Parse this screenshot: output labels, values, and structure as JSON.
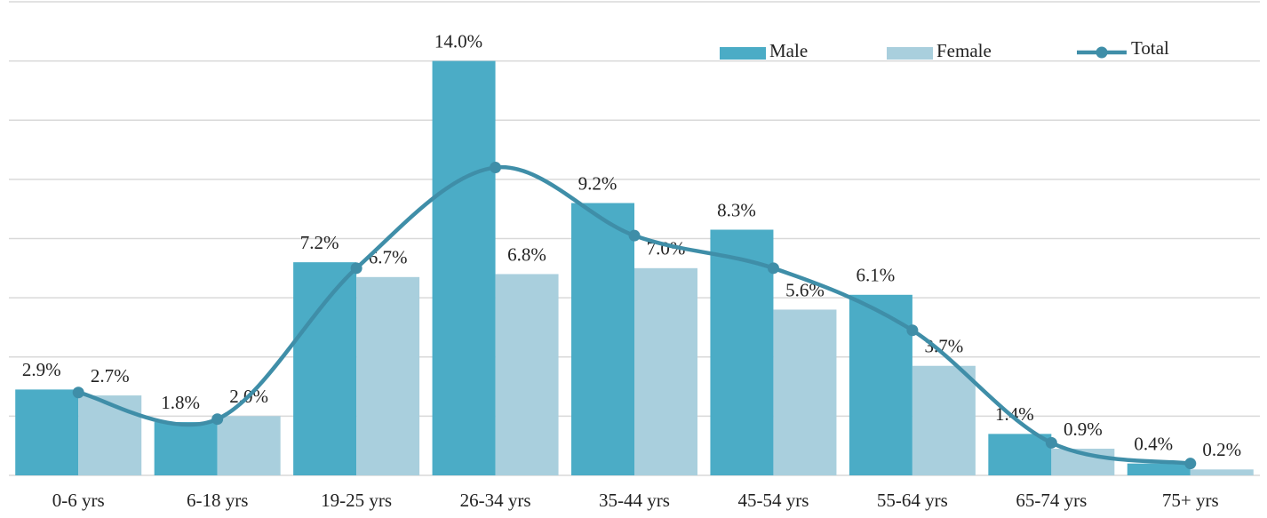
{
  "chart_data": {
    "type": "bar",
    "categories": [
      "0-6 yrs",
      "6-18 yrs",
      "19-25 yrs",
      "26-34 yrs",
      "35-44 yrs",
      "45-54 yrs",
      "55-64 yrs",
      "65-74 yrs",
      "75+ yrs"
    ],
    "series": [
      {
        "name": "Male",
        "type": "bar",
        "color": "#4bacc6",
        "values": [
          2.9,
          1.8,
          7.2,
          14.0,
          9.2,
          8.3,
          6.1,
          1.4,
          0.4
        ],
        "value_labels": [
          "2.9%",
          "1.8%",
          "7.2%",
          "14.0%",
          "9.2%",
          "8.3%",
          "6.1%",
          "1.4%",
          "0.4%"
        ]
      },
      {
        "name": "Female",
        "type": "bar",
        "color": "#a9cfdd",
        "values": [
          2.7,
          2.0,
          6.7,
          6.8,
          7.0,
          5.6,
          3.7,
          0.9,
          0.2
        ],
        "value_labels": [
          "2.7%",
          "2.0%",
          "6.7%",
          "6.8%",
          "7.0%",
          "5.6%",
          "3.7%",
          "0.9%",
          "0.2%"
        ]
      },
      {
        "name": "Total",
        "type": "line",
        "color": "#3f8ea8",
        "values": [
          2.8,
          1.9,
          7.0,
          10.4,
          8.1,
          7.0,
          4.9,
          1.1,
          0.4
        ]
      }
    ],
    "ylim": [
      0,
      16
    ],
    "yticks": [
      0,
      2,
      4,
      6,
      8,
      10,
      12,
      14,
      16
    ],
    "grid": true,
    "legend": "top-right"
  }
}
